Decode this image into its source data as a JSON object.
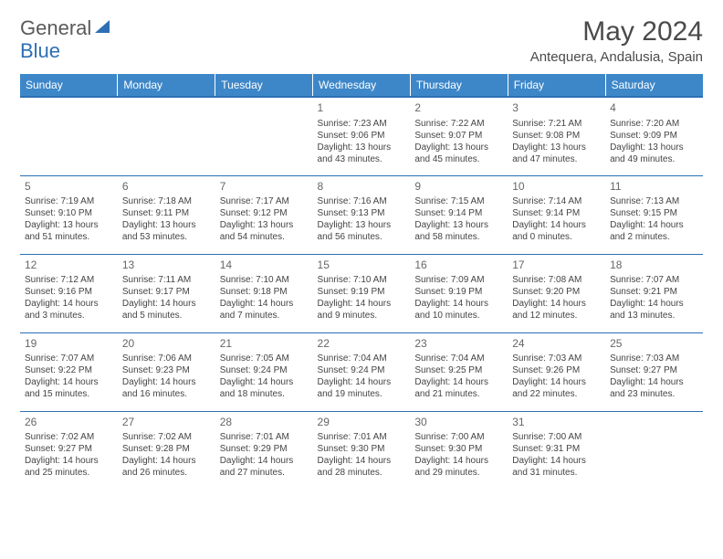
{
  "brand": {
    "part1": "General",
    "part2": "Blue"
  },
  "title": "May 2024",
  "location": "Antequera, Andalusia, Spain",
  "colors": {
    "header_bg": "#3d87c9",
    "border": "#2d6fb5",
    "logo_gray": "#5a5a5a"
  },
  "weekdays": [
    "Sunday",
    "Monday",
    "Tuesday",
    "Wednesday",
    "Thursday",
    "Friday",
    "Saturday"
  ],
  "labels": {
    "sunrise": "Sunrise:",
    "sunset": "Sunset:",
    "daylight": "Daylight:"
  },
  "weeks": [
    [
      null,
      null,
      null,
      {
        "d": "1",
        "sr": "7:23 AM",
        "ss": "9:06 PM",
        "dl": "13 hours and 43 minutes."
      },
      {
        "d": "2",
        "sr": "7:22 AM",
        "ss": "9:07 PM",
        "dl": "13 hours and 45 minutes."
      },
      {
        "d": "3",
        "sr": "7:21 AM",
        "ss": "9:08 PM",
        "dl": "13 hours and 47 minutes."
      },
      {
        "d": "4",
        "sr": "7:20 AM",
        "ss": "9:09 PM",
        "dl": "13 hours and 49 minutes."
      }
    ],
    [
      {
        "d": "5",
        "sr": "7:19 AM",
        "ss": "9:10 PM",
        "dl": "13 hours and 51 minutes."
      },
      {
        "d": "6",
        "sr": "7:18 AM",
        "ss": "9:11 PM",
        "dl": "13 hours and 53 minutes."
      },
      {
        "d": "7",
        "sr": "7:17 AM",
        "ss": "9:12 PM",
        "dl": "13 hours and 54 minutes."
      },
      {
        "d": "8",
        "sr": "7:16 AM",
        "ss": "9:13 PM",
        "dl": "13 hours and 56 minutes."
      },
      {
        "d": "9",
        "sr": "7:15 AM",
        "ss": "9:14 PM",
        "dl": "13 hours and 58 minutes."
      },
      {
        "d": "10",
        "sr": "7:14 AM",
        "ss": "9:14 PM",
        "dl": "14 hours and 0 minutes."
      },
      {
        "d": "11",
        "sr": "7:13 AM",
        "ss": "9:15 PM",
        "dl": "14 hours and 2 minutes."
      }
    ],
    [
      {
        "d": "12",
        "sr": "7:12 AM",
        "ss": "9:16 PM",
        "dl": "14 hours and 3 minutes."
      },
      {
        "d": "13",
        "sr": "7:11 AM",
        "ss": "9:17 PM",
        "dl": "14 hours and 5 minutes."
      },
      {
        "d": "14",
        "sr": "7:10 AM",
        "ss": "9:18 PM",
        "dl": "14 hours and 7 minutes."
      },
      {
        "d": "15",
        "sr": "7:10 AM",
        "ss": "9:19 PM",
        "dl": "14 hours and 9 minutes."
      },
      {
        "d": "16",
        "sr": "7:09 AM",
        "ss": "9:19 PM",
        "dl": "14 hours and 10 minutes."
      },
      {
        "d": "17",
        "sr": "7:08 AM",
        "ss": "9:20 PM",
        "dl": "14 hours and 12 minutes."
      },
      {
        "d": "18",
        "sr": "7:07 AM",
        "ss": "9:21 PM",
        "dl": "14 hours and 13 minutes."
      }
    ],
    [
      {
        "d": "19",
        "sr": "7:07 AM",
        "ss": "9:22 PM",
        "dl": "14 hours and 15 minutes."
      },
      {
        "d": "20",
        "sr": "7:06 AM",
        "ss": "9:23 PM",
        "dl": "14 hours and 16 minutes."
      },
      {
        "d": "21",
        "sr": "7:05 AM",
        "ss": "9:24 PM",
        "dl": "14 hours and 18 minutes."
      },
      {
        "d": "22",
        "sr": "7:04 AM",
        "ss": "9:24 PM",
        "dl": "14 hours and 19 minutes."
      },
      {
        "d": "23",
        "sr": "7:04 AM",
        "ss": "9:25 PM",
        "dl": "14 hours and 21 minutes."
      },
      {
        "d": "24",
        "sr": "7:03 AM",
        "ss": "9:26 PM",
        "dl": "14 hours and 22 minutes."
      },
      {
        "d": "25",
        "sr": "7:03 AM",
        "ss": "9:27 PM",
        "dl": "14 hours and 23 minutes."
      }
    ],
    [
      {
        "d": "26",
        "sr": "7:02 AM",
        "ss": "9:27 PM",
        "dl": "14 hours and 25 minutes."
      },
      {
        "d": "27",
        "sr": "7:02 AM",
        "ss": "9:28 PM",
        "dl": "14 hours and 26 minutes."
      },
      {
        "d": "28",
        "sr": "7:01 AM",
        "ss": "9:29 PM",
        "dl": "14 hours and 27 minutes."
      },
      {
        "d": "29",
        "sr": "7:01 AM",
        "ss": "9:30 PM",
        "dl": "14 hours and 28 minutes."
      },
      {
        "d": "30",
        "sr": "7:00 AM",
        "ss": "9:30 PM",
        "dl": "14 hours and 29 minutes."
      },
      {
        "d": "31",
        "sr": "7:00 AM",
        "ss": "9:31 PM",
        "dl": "14 hours and 31 minutes."
      },
      null
    ]
  ]
}
